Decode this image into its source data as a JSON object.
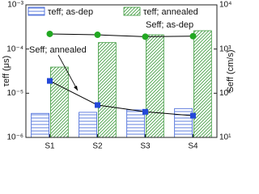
{
  "chart_data": {
    "type": "bar",
    "categories": [
      "S1",
      "S2",
      "S3",
      "S4"
    ],
    "y_label": "τeff (μs)",
    "y2_label": "Seff (cm/s)",
    "log_y": true,
    "log_y2": true,
    "ylim": [
      1e-06,
      0.001
    ],
    "yticks": [
      {
        "value": 1e-06,
        "label": "10⁻⁶"
      },
      {
        "value": 1e-05,
        "label": "10⁻⁵"
      },
      {
        "value": 0.0001,
        "label": "10⁻⁴"
      },
      {
        "value": 0.001,
        "label": "10⁻³"
      }
    ],
    "y2lim": [
      10,
      10000
    ],
    "y2ticks": [
      {
        "value": 10,
        "label": "10¹"
      },
      {
        "value": 100,
        "label": "10²"
      },
      {
        "value": 1000,
        "label": "10³"
      },
      {
        "value": 10000,
        "label": "10⁴"
      }
    ],
    "series": [
      {
        "name": "τeff; as-dep",
        "type": "bar",
        "hatch": "horizontal",
        "color": "#3a5fd6",
        "values": [
          3.5e-06,
          3.7e-06,
          4.2e-06,
          4.5e-06
        ]
      },
      {
        "name": "τeff; annealed",
        "type": "bar",
        "hatch": "diagonal",
        "color": "#3d9a3d",
        "values": [
          3.9e-05,
          0.00014,
          0.00021,
          0.00026
        ]
      },
      {
        "name": "Seff; as-dep",
        "type": "line",
        "axis": "y2",
        "marker": "circle",
        "color": "#22a822",
        "values": [
          2200,
          2100,
          1900,
          1950
        ]
      },
      {
        "name": "Seff; annealed",
        "type": "line",
        "axis": "y2",
        "marker": "square",
        "color": "#2448d8",
        "values": [
          190,
          54,
          38,
          31
        ]
      }
    ]
  }
}
